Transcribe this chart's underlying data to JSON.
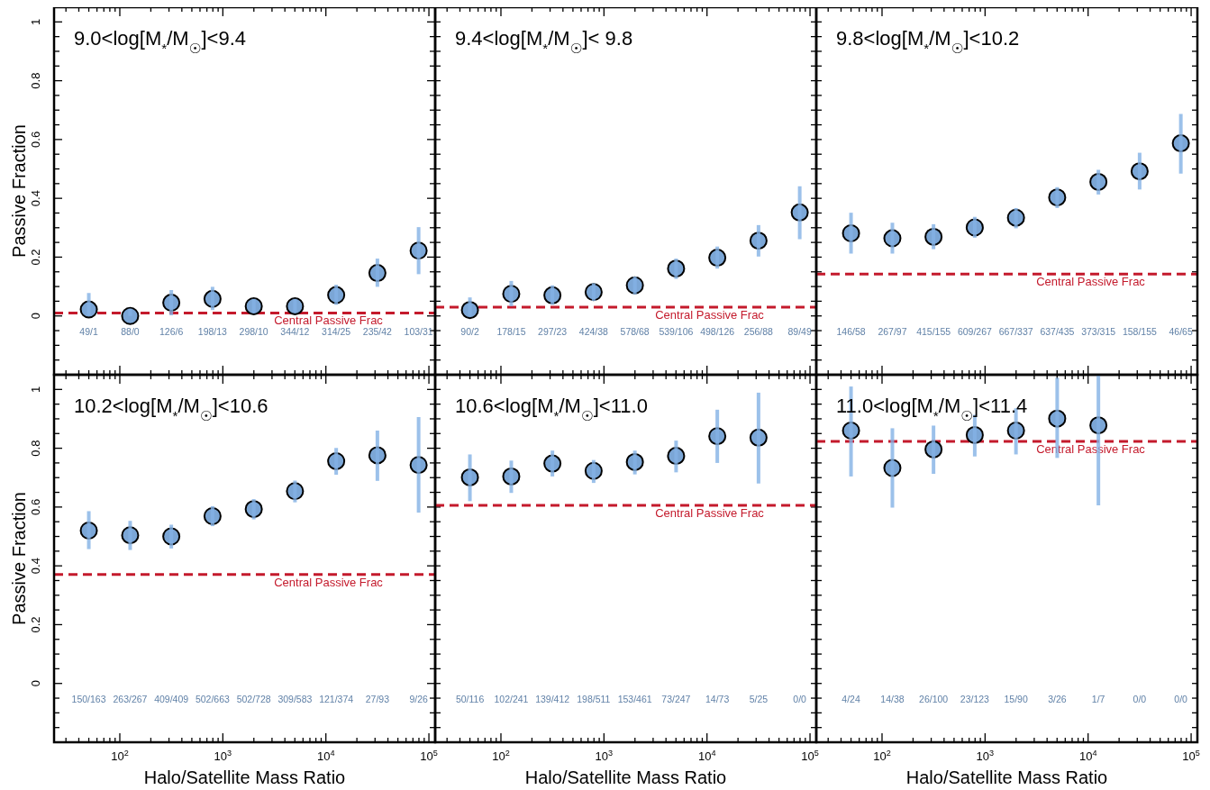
{
  "chart_data": [
    {
      "type": "scatter",
      "title": "9.0<log[M$_{*}$/M$_{☉}$]<9.4",
      "ylabel": "Passive Fraction",
      "tick_labels": "y",
      "log": "x",
      "marker": "circle",
      "xlim": [
        23,
        115000
      ],
      "ylim": [
        -0.2,
        1.05
      ],
      "xticks": [
        {
          "value": 30,
          "label": null
        },
        {
          "value": 40,
          "label": null
        },
        {
          "value": 50,
          "label": null
        },
        {
          "value": 60,
          "label": null
        },
        {
          "value": 70,
          "label": null
        },
        {
          "value": 80,
          "label": null
        },
        {
          "value": 90,
          "label": null
        },
        {
          "value": 100,
          "label": null
        },
        {
          "value": 200,
          "label": null
        },
        {
          "value": 300,
          "label": null
        },
        {
          "value": 400,
          "label": null
        },
        {
          "value": 500,
          "label": null
        },
        {
          "value": 600,
          "label": null
        },
        {
          "value": 700,
          "label": null
        },
        {
          "value": 800,
          "label": null
        },
        {
          "value": 900,
          "label": null
        },
        {
          "value": 1000,
          "label": null
        },
        {
          "value": 2000,
          "label": null
        },
        {
          "value": 3000,
          "label": null
        },
        {
          "value": 4000,
          "label": null
        },
        {
          "value": 5000,
          "label": null
        },
        {
          "value": 6000,
          "label": null
        },
        {
          "value": 7000,
          "label": null
        },
        {
          "value": 8000,
          "label": null
        },
        {
          "value": 9000,
          "label": null
        },
        {
          "value": 10000,
          "label": null
        },
        {
          "value": 20000,
          "label": null
        },
        {
          "value": 30000,
          "label": null
        },
        {
          "value": 40000,
          "label": null
        },
        {
          "value": 50000,
          "label": null
        },
        {
          "value": 60000,
          "label": null
        },
        {
          "value": 70000,
          "label": null
        },
        {
          "value": 80000,
          "label": null
        },
        {
          "value": 90000,
          "label": null
        },
        {
          "value": 100000,
          "label": null
        }
      ],
      "yticks": [
        {
          "value": -0.15,
          "label": null
        },
        {
          "value": -0.1,
          "label": null
        },
        {
          "value": -0.05,
          "label": null
        },
        0,
        {
          "value": 0.05,
          "label": null
        },
        {
          "value": 0.1,
          "label": null
        },
        {
          "value": 0.15,
          "label": null
        },
        0.2,
        {
          "value": 0.25,
          "label": null
        },
        {
          "value": 0.3,
          "label": null
        },
        {
          "value": 0.35,
          "label": null
        },
        0.4,
        {
          "value": 0.45,
          "label": null
        },
        {
          "value": 0.5,
          "label": null
        },
        {
          "value": 0.55,
          "label": null
        },
        0.6,
        {
          "value": 0.65,
          "label": null
        },
        {
          "value": 0.7,
          "label": null
        },
        {
          "value": 0.75,
          "label": null
        },
        0.8,
        {
          "value": 0.85,
          "label": null
        },
        {
          "value": 0.9,
          "label": null
        },
        {
          "value": 0.95,
          "label": null
        },
        1
      ],
      "x": [
        50,
        126,
        316,
        794,
        1995,
        5012,
        12589,
        31623,
        79433
      ],
      "series": [
        {
          "color": "#7ba6d6",
          "values": [
            0.022,
            0.0,
            0.045,
            0.058,
            0.033,
            0.033,
            0.071,
            0.146,
            0.222
          ],
          "errors": [
            [
              0.002,
              0.078
            ],
            [
              0.0,
              0.025
            ],
            [
              0.002,
              0.088
            ],
            [
              0.02,
              0.099
            ],
            [
              0.01,
              0.058
            ],
            [
              0.014,
              0.058
            ],
            [
              0.038,
              0.106
            ],
            [
              0.099,
              0.195
            ],
            [
              0.142,
              0.302
            ]
          ]
        }
      ],
      "ref_lines": [
        {
          "axis": "y",
          "value": 0.01,
          "label": "Central Passive Frac",
          "color": "#c41a2c",
          "line_style": "dashed"
        }
      ],
      "annotations": [
        "49/1",
        "88/0",
        "126/6",
        "198/13",
        "298/10",
        "344/12",
        "314/25",
        "235/42",
        "103/31"
      ]
    },
    {
      "type": "scatter",
      "title": "9.4<log[M$_{*}$/M$_{☉}$]< 9.8",
      "tick_labels": false,
      "log": "x",
      "marker": "circle",
      "xlim": [
        23,
        115000
      ],
      "ylim": [
        -0.2,
        1.05
      ],
      "xticks": [
        {
          "value": 30,
          "label": null
        },
        {
          "value": 40,
          "label": null
        },
        {
          "value": 50,
          "label": null
        },
        {
          "value": 60,
          "label": null
        },
        {
          "value": 70,
          "label": null
        },
        {
          "value": 80,
          "label": null
        },
        {
          "value": 90,
          "label": null
        },
        {
          "value": 100,
          "label": null
        },
        {
          "value": 200,
          "label": null
        },
        {
          "value": 300,
          "label": null
        },
        {
          "value": 400,
          "label": null
        },
        {
          "value": 500,
          "label": null
        },
        {
          "value": 600,
          "label": null
        },
        {
          "value": 700,
          "label": null
        },
        {
          "value": 800,
          "label": null
        },
        {
          "value": 900,
          "label": null
        },
        {
          "value": 1000,
          "label": null
        },
        {
          "value": 2000,
          "label": null
        },
        {
          "value": 3000,
          "label": null
        },
        {
          "value": 4000,
          "label": null
        },
        {
          "value": 5000,
          "label": null
        },
        {
          "value": 6000,
          "label": null
        },
        {
          "value": 7000,
          "label": null
        },
        {
          "value": 8000,
          "label": null
        },
        {
          "value": 9000,
          "label": null
        },
        {
          "value": 10000,
          "label": null
        },
        {
          "value": 20000,
          "label": null
        },
        {
          "value": 30000,
          "label": null
        },
        {
          "value": 40000,
          "label": null
        },
        {
          "value": 50000,
          "label": null
        },
        {
          "value": 60000,
          "label": null
        },
        {
          "value": 70000,
          "label": null
        },
        {
          "value": 80000,
          "label": null
        },
        {
          "value": 90000,
          "label": null
        },
        {
          "value": 100000,
          "label": null
        }
      ],
      "yticks": [
        {
          "value": -0.15,
          "label": null
        },
        {
          "value": -0.1,
          "label": null
        },
        {
          "value": -0.05,
          "label": null
        },
        {
          "value": 0,
          "label": null
        },
        {
          "value": 0.05,
          "label": null
        },
        {
          "value": 0.1,
          "label": null
        },
        {
          "value": 0.15,
          "label": null
        },
        {
          "value": 0.2,
          "label": null
        },
        {
          "value": 0.25,
          "label": null
        },
        {
          "value": 0.3,
          "label": null
        },
        {
          "value": 0.35,
          "label": null
        },
        {
          "value": 0.4,
          "label": null
        },
        {
          "value": 0.45,
          "label": null
        },
        {
          "value": 0.5,
          "label": null
        },
        {
          "value": 0.55,
          "label": null
        },
        {
          "value": 0.6,
          "label": null
        },
        {
          "value": 0.65,
          "label": null
        },
        {
          "value": 0.7,
          "label": null
        },
        {
          "value": 0.75,
          "label": null
        },
        {
          "value": 0.8,
          "label": null
        },
        {
          "value": 0.85,
          "label": null
        },
        {
          "value": 0.9,
          "label": null
        },
        {
          "value": 0.95,
          "label": null
        },
        {
          "value": 1,
          "label": null
        }
      ],
      "x": [
        50,
        126,
        316,
        794,
        1995,
        5012,
        12589,
        31623,
        79433
      ],
      "series": [
        {
          "color": "#7ba6d6",
          "values": [
            0.02,
            0.075,
            0.07,
            0.081,
            0.104,
            0.161,
            0.198,
            0.256,
            0.352
          ],
          "errors": [
            [
              0.0,
              0.063
            ],
            [
              0.033,
              0.119
            ],
            [
              0.038,
              0.104
            ],
            [
              0.051,
              0.111
            ],
            [
              0.073,
              0.134
            ],
            [
              0.126,
              0.195
            ],
            [
              0.161,
              0.236
            ],
            [
              0.202,
              0.309
            ],
            [
              0.261,
              0.441
            ]
          ]
        }
      ],
      "ref_lines": [
        {
          "axis": "y",
          "value": 0.03,
          "label": "Central Passive Frac",
          "color": "#c41a2c",
          "line_style": "dashed"
        }
      ],
      "annotations": [
        "90/2",
        "178/15",
        "297/23",
        "424/38",
        "578/68",
        "539/106",
        "498/126",
        "256/88",
        "89/49"
      ]
    },
    {
      "type": "scatter",
      "title": "9.8<log[M$_{*}$/M$_{☉}$]<10.2",
      "tick_labels": false,
      "log": "x",
      "marker": "circle",
      "xlim": [
        23,
        115000
      ],
      "ylim": [
        -0.2,
        1.05
      ],
      "xticks": [
        {
          "value": 30,
          "label": null
        },
        {
          "value": 40,
          "label": null
        },
        {
          "value": 50,
          "label": null
        },
        {
          "value": 60,
          "label": null
        },
        {
          "value": 70,
          "label": null
        },
        {
          "value": 80,
          "label": null
        },
        {
          "value": 90,
          "label": null
        },
        {
          "value": 100,
          "label": null
        },
        {
          "value": 200,
          "label": null
        },
        {
          "value": 300,
          "label": null
        },
        {
          "value": 400,
          "label": null
        },
        {
          "value": 500,
          "label": null
        },
        {
          "value": 600,
          "label": null
        },
        {
          "value": 700,
          "label": null
        },
        {
          "value": 800,
          "label": null
        },
        {
          "value": 900,
          "label": null
        },
        {
          "value": 1000,
          "label": null
        },
        {
          "value": 2000,
          "label": null
        },
        {
          "value": 3000,
          "label": null
        },
        {
          "value": 4000,
          "label": null
        },
        {
          "value": 5000,
          "label": null
        },
        {
          "value": 6000,
          "label": null
        },
        {
          "value": 7000,
          "label": null
        },
        {
          "value": 8000,
          "label": null
        },
        {
          "value": 9000,
          "label": null
        },
        {
          "value": 10000,
          "label": null
        },
        {
          "value": 20000,
          "label": null
        },
        {
          "value": 30000,
          "label": null
        },
        {
          "value": 40000,
          "label": null
        },
        {
          "value": 50000,
          "label": null
        },
        {
          "value": 60000,
          "label": null
        },
        {
          "value": 70000,
          "label": null
        },
        {
          "value": 80000,
          "label": null
        },
        {
          "value": 90000,
          "label": null
        },
        {
          "value": 100000,
          "label": null
        }
      ],
      "yticks": [
        {
          "value": -0.15,
          "label": null
        },
        {
          "value": -0.1,
          "label": null
        },
        {
          "value": -0.05,
          "label": null
        },
        {
          "value": 0,
          "label": null
        },
        {
          "value": 0.05,
          "label": null
        },
        {
          "value": 0.1,
          "label": null
        },
        {
          "value": 0.15,
          "label": null
        },
        {
          "value": 0.2,
          "label": null
        },
        {
          "value": 0.25,
          "label": null
        },
        {
          "value": 0.3,
          "label": null
        },
        {
          "value": 0.35,
          "label": null
        },
        {
          "value": 0.4,
          "label": null
        },
        {
          "value": 0.45,
          "label": null
        },
        {
          "value": 0.5,
          "label": null
        },
        {
          "value": 0.55,
          "label": null
        },
        {
          "value": 0.6,
          "label": null
        },
        {
          "value": 0.65,
          "label": null
        },
        {
          "value": 0.7,
          "label": null
        },
        {
          "value": 0.75,
          "label": null
        },
        {
          "value": 0.8,
          "label": null
        },
        {
          "value": 0.85,
          "label": null
        },
        {
          "value": 0.9,
          "label": null
        },
        {
          "value": 0.95,
          "label": null
        },
        {
          "value": 1,
          "label": null
        }
      ],
      "x": [
        50,
        126,
        316,
        794,
        1995,
        5012,
        12589,
        31623,
        79433
      ],
      "series": [
        {
          "color": "#7ba6d6",
          "values": [
            0.281,
            0.264,
            0.269,
            0.301,
            0.334,
            0.403,
            0.456,
            0.492,
            0.587
          ],
          "errors": [
            [
              0.212,
              0.351
            ],
            [
              0.212,
              0.317
            ],
            [
              0.227,
              0.312
            ],
            [
              0.266,
              0.337
            ],
            [
              0.298,
              0.367
            ],
            [
              0.367,
              0.438
            ],
            [
              0.413,
              0.497
            ],
            [
              0.43,
              0.555
            ],
            [
              0.484,
              0.687
            ]
          ]
        }
      ],
      "ref_lines": [
        {
          "axis": "y",
          "value": 0.142,
          "label": "Central Passive Frac",
          "color": "#c41a2c",
          "line_style": "dashed"
        }
      ],
      "annotations": [
        "146/58",
        "267/97",
        "415/155",
        "609/267",
        "667/337",
        "637/435",
        "373/315",
        "158/155",
        "46/65"
      ]
    },
    {
      "type": "scatter",
      "title": "10.2<log[M$_{*}$/M$_{☉}$]<10.6",
      "xlabel": "Halo/Satellite Mass Ratio",
      "ylabel": "Passive Fraction",
      "log": "x",
      "marker": "circle",
      "xlim": [
        23,
        115000
      ],
      "ylim": [
        -0.2,
        1.05
      ],
      "xticks": [
        {
          "value": 30,
          "label": null
        },
        {
          "value": 40,
          "label": null
        },
        {
          "value": 50,
          "label": null
        },
        {
          "value": 60,
          "label": null
        },
        {
          "value": 70,
          "label": null
        },
        {
          "value": 80,
          "label": null
        },
        {
          "value": 90,
          "label": null
        },
        {
          "value": 100,
          "label": "10$^{2}$"
        },
        {
          "value": 200,
          "label": null
        },
        {
          "value": 300,
          "label": null
        },
        {
          "value": 400,
          "label": null
        },
        {
          "value": 500,
          "label": null
        },
        {
          "value": 600,
          "label": null
        },
        {
          "value": 700,
          "label": null
        },
        {
          "value": 800,
          "label": null
        },
        {
          "value": 900,
          "label": null
        },
        {
          "value": 1000,
          "label": "10$^{3}$"
        },
        {
          "value": 2000,
          "label": null
        },
        {
          "value": 3000,
          "label": null
        },
        {
          "value": 4000,
          "label": null
        },
        {
          "value": 5000,
          "label": null
        },
        {
          "value": 6000,
          "label": null
        },
        {
          "value": 7000,
          "label": null
        },
        {
          "value": 8000,
          "label": null
        },
        {
          "value": 9000,
          "label": null
        },
        {
          "value": 10000,
          "label": "10$^{4}$"
        },
        {
          "value": 20000,
          "label": null
        },
        {
          "value": 30000,
          "label": null
        },
        {
          "value": 40000,
          "label": null
        },
        {
          "value": 50000,
          "label": null
        },
        {
          "value": 60000,
          "label": null
        },
        {
          "value": 70000,
          "label": null
        },
        {
          "value": 80000,
          "label": null
        },
        {
          "value": 90000,
          "label": null
        },
        {
          "value": 100000,
          "label": "10$^{5}$"
        }
      ],
      "yticks": [
        {
          "value": -0.15,
          "label": null
        },
        {
          "value": -0.1,
          "label": null
        },
        {
          "value": -0.05,
          "label": null
        },
        0,
        {
          "value": 0.05,
          "label": null
        },
        {
          "value": 0.1,
          "label": null
        },
        {
          "value": 0.15,
          "label": null
        },
        0.2,
        {
          "value": 0.25,
          "label": null
        },
        {
          "value": 0.3,
          "label": null
        },
        {
          "value": 0.35,
          "label": null
        },
        0.4,
        {
          "value": 0.45,
          "label": null
        },
        {
          "value": 0.5,
          "label": null
        },
        {
          "value": 0.55,
          "label": null
        },
        0.6,
        {
          "value": 0.65,
          "label": null
        },
        {
          "value": 0.7,
          "label": null
        },
        {
          "value": 0.75,
          "label": null
        },
        0.8,
        {
          "value": 0.85,
          "label": null
        },
        {
          "value": 0.9,
          "label": null
        },
        {
          "value": 0.95,
          "label": null
        },
        1
      ],
      "x": [
        50,
        126,
        316,
        794,
        1995,
        5012,
        12589,
        31623,
        79433
      ],
      "series": [
        {
          "color": "#7ba6d6",
          "values": [
            0.52,
            0.504,
            0.5,
            0.569,
            0.593,
            0.654,
            0.756,
            0.776,
            0.743
          ],
          "errors": [
            [
              0.457,
              0.586
            ],
            [
              0.454,
              0.553
            ],
            [
              0.459,
              0.54
            ],
            [
              0.535,
              0.603
            ],
            [
              0.558,
              0.627
            ],
            [
              0.616,
              0.69
            ],
            [
              0.71,
              0.801
            ],
            [
              0.689,
              0.86
            ],
            [
              0.581,
              0.906
            ]
          ]
        }
      ],
      "ref_lines": [
        {
          "axis": "y",
          "value": 0.371,
          "label": "Central Passive Frac",
          "color": "#c41a2c",
          "line_style": "dashed"
        }
      ],
      "annotations": [
        "150/163",
        "263/267",
        "409/409",
        "502/663",
        "502/728",
        "309/583",
        "121/374",
        "27/93",
        "9/26"
      ]
    },
    {
      "type": "scatter",
      "title": "10.6<log[M$_{*}$/M$_{☉}$]<11.0",
      "xlabel": "Halo/Satellite Mass Ratio",
      "tick_labels": "x",
      "log": "x",
      "marker": "circle",
      "xlim": [
        23,
        115000
      ],
      "ylim": [
        -0.2,
        1.05
      ],
      "xticks": [
        {
          "value": 30,
          "label": null
        },
        {
          "value": 40,
          "label": null
        },
        {
          "value": 50,
          "label": null
        },
        {
          "value": 60,
          "label": null
        },
        {
          "value": 70,
          "label": null
        },
        {
          "value": 80,
          "label": null
        },
        {
          "value": 90,
          "label": null
        },
        {
          "value": 100,
          "label": "10$^{2}$"
        },
        {
          "value": 200,
          "label": null
        },
        {
          "value": 300,
          "label": null
        },
        {
          "value": 400,
          "label": null
        },
        {
          "value": 500,
          "label": null
        },
        {
          "value": 600,
          "label": null
        },
        {
          "value": 700,
          "label": null
        },
        {
          "value": 800,
          "label": null
        },
        {
          "value": 900,
          "label": null
        },
        {
          "value": 1000,
          "label": "10$^{3}$"
        },
        {
          "value": 2000,
          "label": null
        },
        {
          "value": 3000,
          "label": null
        },
        {
          "value": 4000,
          "label": null
        },
        {
          "value": 5000,
          "label": null
        },
        {
          "value": 6000,
          "label": null
        },
        {
          "value": 7000,
          "label": null
        },
        {
          "value": 8000,
          "label": null
        },
        {
          "value": 9000,
          "label": null
        },
        {
          "value": 10000,
          "label": "10$^{4}$"
        },
        {
          "value": 20000,
          "label": null
        },
        {
          "value": 30000,
          "label": null
        },
        {
          "value": 40000,
          "label": null
        },
        {
          "value": 50000,
          "label": null
        },
        {
          "value": 60000,
          "label": null
        },
        {
          "value": 70000,
          "label": null
        },
        {
          "value": 80000,
          "label": null
        },
        {
          "value": 90000,
          "label": null
        },
        {
          "value": 100000,
          "label": "10$^{5}$"
        }
      ],
      "yticks": [
        {
          "value": -0.15,
          "label": null
        },
        {
          "value": -0.1,
          "label": null
        },
        {
          "value": -0.05,
          "label": null
        },
        {
          "value": 0,
          "label": null
        },
        {
          "value": 0.05,
          "label": null
        },
        {
          "value": 0.1,
          "label": null
        },
        {
          "value": 0.15,
          "label": null
        },
        {
          "value": 0.2,
          "label": null
        },
        {
          "value": 0.25,
          "label": null
        },
        {
          "value": 0.3,
          "label": null
        },
        {
          "value": 0.35,
          "label": null
        },
        {
          "value": 0.4,
          "label": null
        },
        {
          "value": 0.45,
          "label": null
        },
        {
          "value": 0.5,
          "label": null
        },
        {
          "value": 0.55,
          "label": null
        },
        {
          "value": 0.6,
          "label": null
        },
        {
          "value": 0.65,
          "label": null
        },
        {
          "value": 0.7,
          "label": null
        },
        {
          "value": 0.75,
          "label": null
        },
        {
          "value": 0.8,
          "label": null
        },
        {
          "value": 0.85,
          "label": null
        },
        {
          "value": 0.9,
          "label": null
        },
        {
          "value": 0.95,
          "label": null
        },
        {
          "value": 1,
          "label": null
        }
      ],
      "x": [
        50,
        126,
        316,
        794,
        1995,
        5012,
        12589,
        31623
      ],
      "series": [
        {
          "color": "#7ba6d6",
          "values": [
            0.701,
            0.704,
            0.748,
            0.723,
            0.753,
            0.774,
            0.841,
            0.836
          ],
          "errors": [
            [
              0.62,
              0.779
            ],
            [
              0.648,
              0.758
            ],
            [
              0.704,
              0.792
            ],
            [
              0.682,
              0.76
            ],
            [
              0.711,
              0.792
            ],
            [
              0.718,
              0.826
            ],
            [
              0.75,
              0.931
            ],
            [
              0.68,
              0.989
            ]
          ]
        }
      ],
      "ref_lines": [
        {
          "axis": "y",
          "value": 0.606,
          "label": "Central Passive Frac",
          "color": "#c41a2c",
          "line_style": "dashed"
        }
      ],
      "annotations": [
        "50/116",
        "102/241",
        "139/412",
        "198/511",
        "153/461",
        "73/247",
        "14/73",
        "5/25",
        "0/0"
      ]
    },
    {
      "type": "scatter",
      "title": "11.0<log[M$_{*}$/M$_{☉}$]<11.4",
      "xlabel": "Halo/Satellite Mass Ratio",
      "tick_labels": "x",
      "log": "x",
      "marker": "circle",
      "xlim": [
        23,
        115000
      ],
      "ylim": [
        -0.2,
        1.05
      ],
      "xticks": [
        {
          "value": 30,
          "label": null
        },
        {
          "value": 40,
          "label": null
        },
        {
          "value": 50,
          "label": null
        },
        {
          "value": 60,
          "label": null
        },
        {
          "value": 70,
          "label": null
        },
        {
          "value": 80,
          "label": null
        },
        {
          "value": 90,
          "label": null
        },
        {
          "value": 100,
          "label": "10$^{2}$"
        },
        {
          "value": 200,
          "label": null
        },
        {
          "value": 300,
          "label": null
        },
        {
          "value": 400,
          "label": null
        },
        {
          "value": 500,
          "label": null
        },
        {
          "value": 600,
          "label": null
        },
        {
          "value": 700,
          "label": null
        },
        {
          "value": 800,
          "label": null
        },
        {
          "value": 900,
          "label": null
        },
        {
          "value": 1000,
          "label": "10$^{3}$"
        },
        {
          "value": 2000,
          "label": null
        },
        {
          "value": 3000,
          "label": null
        },
        {
          "value": 4000,
          "label": null
        },
        {
          "value": 5000,
          "label": null
        },
        {
          "value": 6000,
          "label": null
        },
        {
          "value": 7000,
          "label": null
        },
        {
          "value": 8000,
          "label": null
        },
        {
          "value": 9000,
          "label": null
        },
        {
          "value": 10000,
          "label": "10$^{4}$"
        },
        {
          "value": 20000,
          "label": null
        },
        {
          "value": 30000,
          "label": null
        },
        {
          "value": 40000,
          "label": null
        },
        {
          "value": 50000,
          "label": null
        },
        {
          "value": 60000,
          "label": null
        },
        {
          "value": 70000,
          "label": null
        },
        {
          "value": 80000,
          "label": null
        },
        {
          "value": 90000,
          "label": null
        },
        {
          "value": 100000,
          "label": "10$^{5}$"
        }
      ],
      "yticks": [
        {
          "value": -0.15,
          "label": null
        },
        {
          "value": -0.1,
          "label": null
        },
        {
          "value": -0.05,
          "label": null
        },
        {
          "value": 0,
          "label": null
        },
        {
          "value": 0.05,
          "label": null
        },
        {
          "value": 0.1,
          "label": null
        },
        {
          "value": 0.15,
          "label": null
        },
        {
          "value": 0.2,
          "label": null
        },
        {
          "value": 0.25,
          "label": null
        },
        {
          "value": 0.3,
          "label": null
        },
        {
          "value": 0.35,
          "label": null
        },
        {
          "value": 0.4,
          "label": null
        },
        {
          "value": 0.45,
          "label": null
        },
        {
          "value": 0.5,
          "label": null
        },
        {
          "value": 0.55,
          "label": null
        },
        {
          "value": 0.6,
          "label": null
        },
        {
          "value": 0.65,
          "label": null
        },
        {
          "value": 0.7,
          "label": null
        },
        {
          "value": 0.75,
          "label": null
        },
        {
          "value": 0.8,
          "label": null
        },
        {
          "value": 0.85,
          "label": null
        },
        {
          "value": 0.9,
          "label": null
        },
        {
          "value": 0.95,
          "label": null
        },
        {
          "value": 1,
          "label": null
        }
      ],
      "x": [
        50,
        126,
        316,
        794,
        1995,
        5012,
        12589
      ],
      "series": [
        {
          "color": "#7ba6d6",
          "values": [
            0.86,
            0.733,
            0.796,
            0.845,
            0.86,
            0.901,
            0.878
          ],
          "errors": [
            [
              0.704,
              1.01
            ],
            [
              0.598,
              0.868
            ],
            [
              0.713,
              0.877
            ],
            [
              0.772,
              0.914
            ],
            [
              0.779,
              0.936
            ],
            [
              0.767,
              1.04
            ],
            [
              0.606,
              1.05
            ]
          ]
        }
      ],
      "ref_lines": [
        {
          "axis": "y",
          "value": 0.823,
          "label": "Central Passive Frac",
          "color": "#c41a2c",
          "line_style": "dashed"
        }
      ],
      "annotations": [
        "4/24",
        "14/38",
        "26/100",
        "23/123",
        "15/90",
        "3/26",
        "1/7",
        "0/0",
        "0/0"
      ]
    }
  ]
}
